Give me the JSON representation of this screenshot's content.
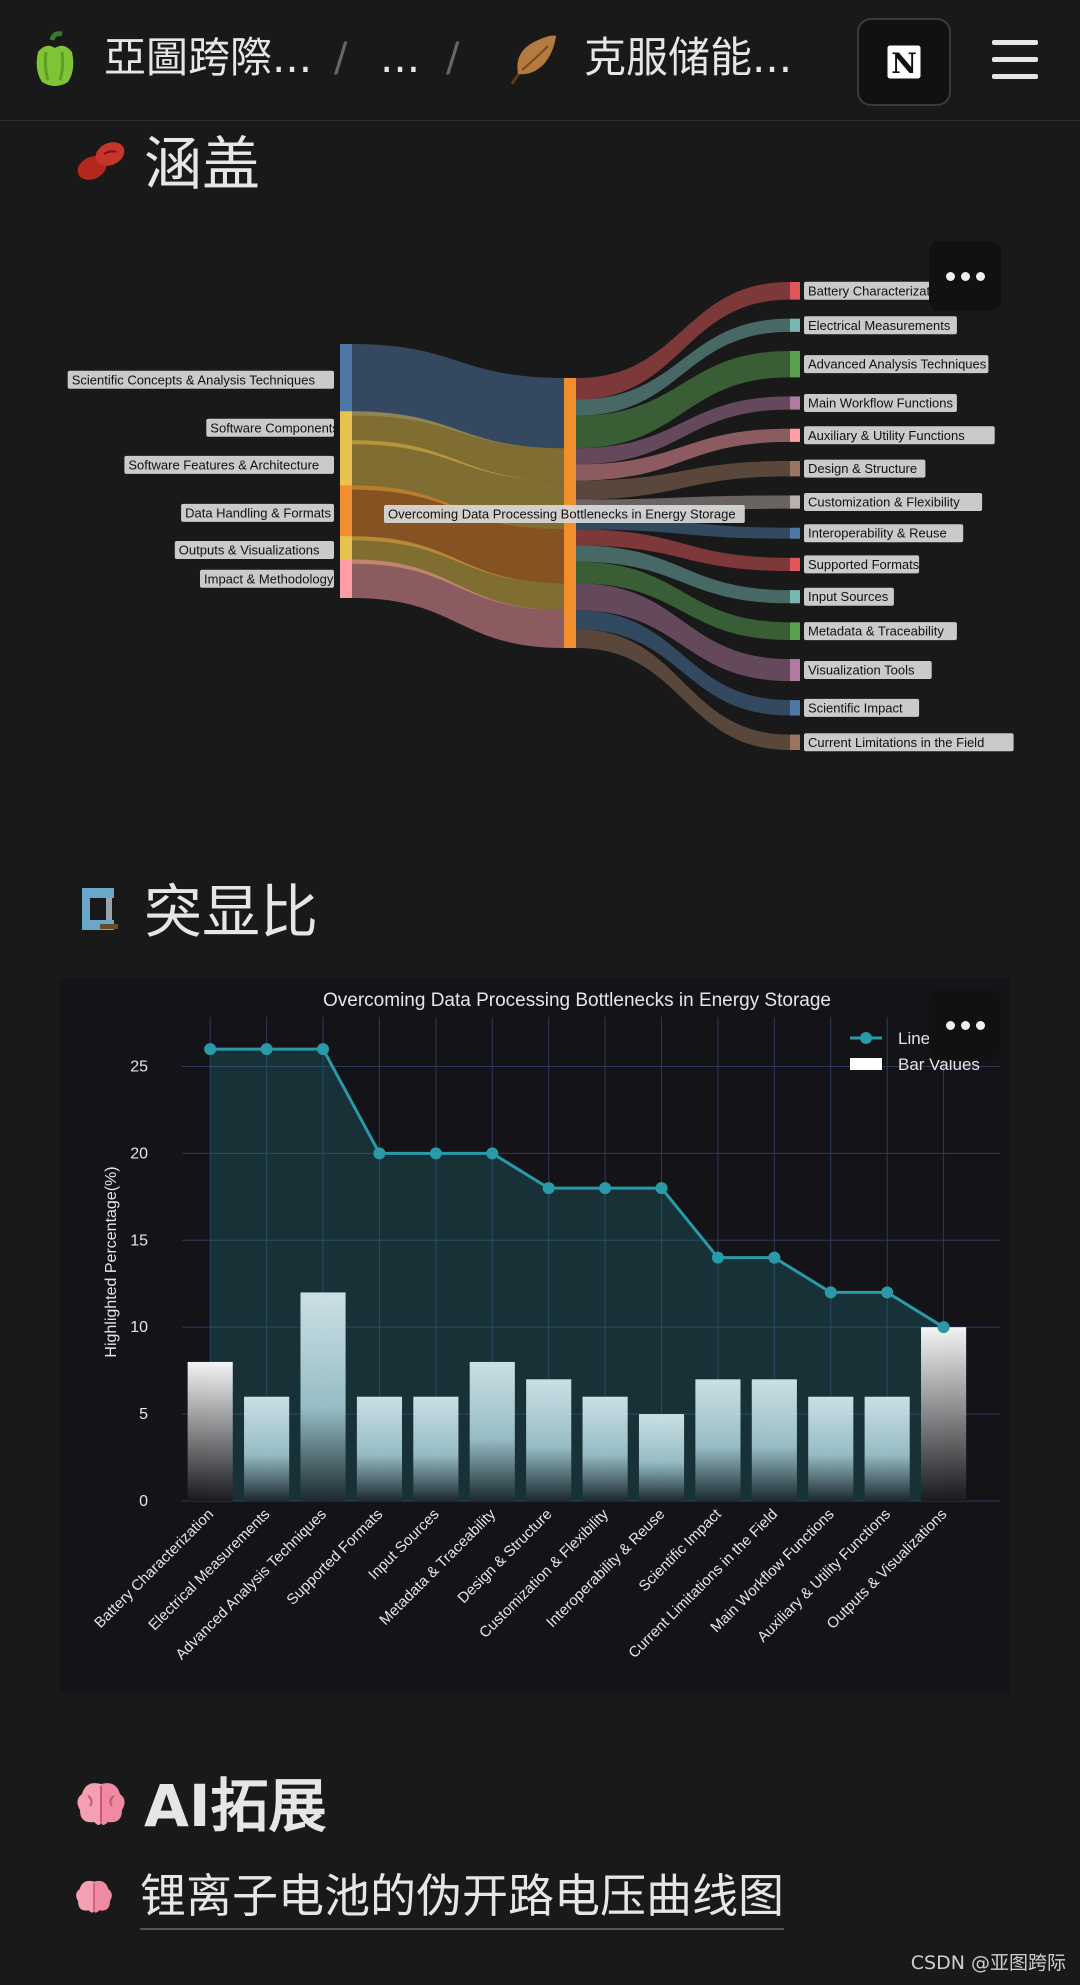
{
  "topbar": {
    "workspace": "亞圖跨際...",
    "separator": "/",
    "ellipsis": "...",
    "page": "克服储能...",
    "notion_letter": "N"
  },
  "section_coverage": {
    "title": "涵盖"
  },
  "section_highlight": {
    "title": "突显比"
  },
  "section_ai": {
    "title": "AI拓展",
    "link_text": "锂离子电池的伪开路电压曲线图"
  },
  "footer": {
    "credit": "CSDN @亚图跨际"
  },
  "colors": {
    "background": "#191919",
    "accent_line": "#2a9aa8"
  },
  "chart_data": [
    {
      "type": "sankey",
      "center_node": "Overcoming Data Processing Bottlenecks in Energy Storage",
      "sources": [
        {
          "name": "Scientific Concepts & Analysis Techniques",
          "value": 26,
          "color": "#4f78a8"
        },
        {
          "name": "Software Components",
          "value": 12,
          "color": "#e8c24a"
        },
        {
          "name": "Software Features & Architecture",
          "value": 18,
          "color": "#e8c24a"
        },
        {
          "name": "Data Handling & Formats",
          "value": 20,
          "color": "#f28e2b"
        },
        {
          "name": "Outputs & Visualizations",
          "value": 10,
          "color": "#e8c24a"
        },
        {
          "name": "Impact & Methodology",
          "value": 14,
          "color": "#ff9da7"
        }
      ],
      "targets": [
        {
          "name": "Battery Characterization",
          "value": 8,
          "color": "#e15759"
        },
        {
          "name": "Electrical Measurements",
          "value": 6,
          "color": "#76b7b2"
        },
        {
          "name": "Advanced Analysis Techniques",
          "value": 12,
          "color": "#59a14f"
        },
        {
          "name": "Main Workflow Functions",
          "value": 6,
          "color": "#b07aa1"
        },
        {
          "name": "Auxiliary & Utility Functions",
          "value": 6,
          "color": "#ff9da7"
        },
        {
          "name": "Design & Structure",
          "value": 7,
          "color": "#9c755f"
        },
        {
          "name": "Customization & Flexibility",
          "value": 6,
          "color": "#bab0ac"
        },
        {
          "name": "Interoperability & Reuse",
          "value": 5,
          "color": "#4e79a7"
        },
        {
          "name": "Supported Formats",
          "value": 6,
          "color": "#e15759"
        },
        {
          "name": "Input Sources",
          "value": 6,
          "color": "#76b7b2"
        },
        {
          "name": "Metadata & Traceability",
          "value": 8,
          "color": "#59a14f"
        },
        {
          "name": "Visualization Tools",
          "value": 10,
          "color": "#b07aa1"
        },
        {
          "name": "Scientific Impact",
          "value": 7,
          "color": "#4e79a7"
        },
        {
          "name": "Current Limitations in the Field",
          "value": 7,
          "color": "#9c755f"
        }
      ]
    },
    {
      "type": "bar+line",
      "title": "Overcoming Data Processing Bottlenecks in Energy Storage",
      "ylabel": "Highlighted Percentage(%)",
      "xlabel": "",
      "ylim": [
        0,
        27.5
      ],
      "yticks": [
        0,
        5,
        10,
        15,
        20,
        25
      ],
      "categories": [
        "Battery Characterization",
        "Electrical Measurements",
        "Advanced Analysis Techniques",
        "Supported Formats",
        "Input Sources",
        "Metadata & Traceability",
        "Design & Structure",
        "Customization & Flexibility",
        "Interoperability & Reuse",
        "Scientific Impact",
        "Current Limitations in the Field",
        "Main Workflow Functions",
        "Auxiliary & Utility Functions",
        "Outputs & Visualizations"
      ],
      "series": [
        {
          "name": "Line Values",
          "kind": "line",
          "values": [
            26,
            26,
            26,
            20,
            20,
            20,
            18,
            18,
            18,
            14,
            14,
            12,
            12,
            10
          ]
        },
        {
          "name": "Bar Values",
          "kind": "bar",
          "values": [
            8,
            6,
            12,
            6,
            6,
            8,
            7,
            6,
            5,
            7,
            7,
            6,
            6,
            10
          ]
        }
      ],
      "legend": "top-right",
      "grid": true
    }
  ]
}
